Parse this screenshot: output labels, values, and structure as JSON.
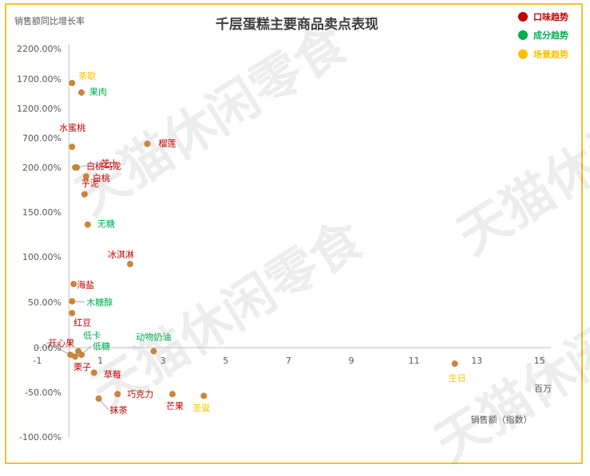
{
  "chart_data": {
    "type": "scatter",
    "title": "千层蛋糕主要商品卖点表现",
    "ylabel": "销售额同比增长率",
    "xlabel": "销售额（指数）",
    "x_unit": "百万",
    "x_ticks": [
      "-1",
      "1",
      "3",
      "5",
      "7",
      "9",
      "11",
      "13",
      "15"
    ],
    "y_ticks": [
      "2200.00%",
      "1700.00%",
      "1200.00%",
      "700.00%",
      "200.00%",
      "150.00%",
      "100.00%",
      "50.00%",
      "0.00%",
      "-50.00%",
      "-100.00%"
    ],
    "legend_position": "top-right",
    "series": [
      {
        "name": "口味趋势",
        "color": "#c00000"
      },
      {
        "name": "成分趋势",
        "color": "#00b050"
      },
      {
        "name": "场景趋势",
        "color": "#ffc000"
      }
    ],
    "points": [
      {
        "label": "茶歇",
        "group": "场景趋势",
        "x": 0.1,
        "y": "1630%"
      },
      {
        "label": "果肉",
        "group": "成分趋势",
        "x": 0.4,
        "y": "1470%"
      },
      {
        "label": "水蜜桃",
        "group": "口味趋势",
        "x": 0.1,
        "y": "550%"
      },
      {
        "label": "白桃乌龙",
        "group": "口味趋势",
        "x": 0.2,
        "y": "200%"
      },
      {
        "label": "芝士",
        "group": "口味趋势",
        "x": 0.25,
        "y": "200%"
      },
      {
        "label": "白桃",
        "group": "口味趋势",
        "x": 0.55,
        "y": "190%"
      },
      {
        "label": "芋泥",
        "group": "口味趋势",
        "x": 0.5,
        "y": "170%"
      },
      {
        "label": "榴莲",
        "group": "口味趋势",
        "x": 2.5,
        "y": "600%"
      },
      {
        "label": "无糖",
        "group": "成分趋势",
        "x": 0.6,
        "y": "136%"
      },
      {
        "label": "冰淇淋",
        "group": "口味趋势",
        "x": 1.95,
        "y": "92%"
      },
      {
        "label": "海盐",
        "group": "口味趋势",
        "x": 0.15,
        "y": "70%"
      },
      {
        "label": "木糖醇",
        "group": "成分趋势",
        "x": 0.1,
        "y": "51%"
      },
      {
        "label": "红豆",
        "group": "口味趋势",
        "x": 0.1,
        "y": "38%"
      },
      {
        "label": "开心果",
        "group": "口味趋势",
        "x": 0.05,
        "y": "-8%"
      },
      {
        "label": "低卡",
        "group": "成分趋势",
        "x": 0.3,
        "y": "-4%"
      },
      {
        "label": "低糖",
        "group": "成分趋势",
        "x": 0.4,
        "y": "-8%"
      },
      {
        "label": "栗子",
        "group": "口味趋势",
        "x": 0.2,
        "y": "-10%"
      },
      {
        "label": "动物奶油",
        "group": "成分趋势",
        "x": 2.7,
        "y": "-4%"
      },
      {
        "label": "草莓",
        "group": "口味趋势",
        "x": 0.8,
        "y": "-28%"
      },
      {
        "label": "巧克力",
        "group": "口味趋势",
        "x": 1.55,
        "y": "-52%"
      },
      {
        "label": "抹茶",
        "group": "口味趋势",
        "x": 0.95,
        "y": "-57%"
      },
      {
        "label": "芒果",
        "group": "口味趋势",
        "x": 3.3,
        "y": "-52%"
      },
      {
        "label": "圣诞",
        "group": "场景趋势",
        "x": 4.3,
        "y": "-54%"
      },
      {
        "label": "生日",
        "group": "场景趋势",
        "x": 12.3,
        "y": "-18%"
      }
    ],
    "watermark": "天猫休闲零食"
  }
}
